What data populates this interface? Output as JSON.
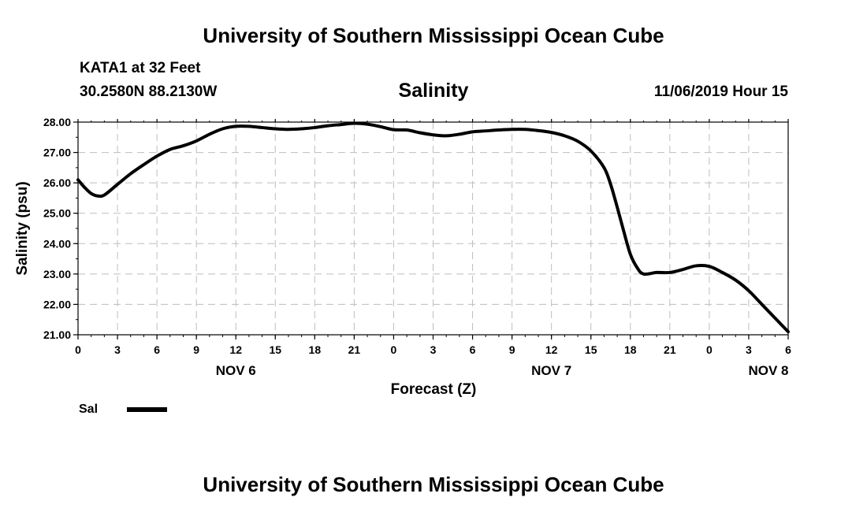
{
  "header": {
    "org_title": "University of Southern Mississippi Ocean Cube",
    "station": "KATA1 at 32 Feet",
    "coordinates": "30.2580N 88.2130W",
    "chart_title": "Salinity",
    "issued": "11/06/2019 Hour 15"
  },
  "footer": {
    "org_title": "University of Southern Mississippi Ocean Cube"
  },
  "chart_data": {
    "type": "line",
    "title": "Salinity",
    "xlabel": "Forecast (Z)",
    "ylabel": "Salinity (psu)",
    "ylim": [
      21.0,
      28.0
    ],
    "xlim": [
      0,
      54
    ],
    "x_unit": "forecast hours from 00Z NOV 6",
    "grid": true,
    "y_ticks": [
      "21.00",
      "22.00",
      "23.00",
      "24.00",
      "25.00",
      "26.00",
      "27.00",
      "28.00"
    ],
    "x_ticks": [
      "0",
      "3",
      "6",
      "9",
      "12",
      "15",
      "18",
      "21",
      "0",
      "3",
      "6",
      "9",
      "12",
      "15",
      "18",
      "21",
      "0",
      "3",
      "6"
    ],
    "day_labels": [
      {
        "label": "NOV 6",
        "x": 12
      },
      {
        "label": "NOV 7",
        "x": 36
      },
      {
        "label": "NOV 8",
        "x": 52.5
      }
    ],
    "legend": {
      "placement": "bottom-left",
      "entries": [
        {
          "name": "Sal"
        }
      ]
    },
    "series": [
      {
        "name": "Sal",
        "color": "#000000",
        "x": [
          0,
          0.5,
          1,
          1.5,
          2,
          3,
          4,
          5,
          6,
          7,
          8,
          9,
          10,
          11,
          12,
          13,
          14,
          15,
          16,
          17,
          18,
          19,
          20,
          21,
          22,
          23,
          24,
          25,
          26,
          27,
          28,
          29,
          30,
          31,
          32,
          33,
          34,
          35,
          36,
          37,
          38,
          39,
          40,
          40.5,
          41,
          41.5,
          42,
          42.5,
          43,
          44,
          45,
          46,
          47,
          48,
          49,
          50,
          51,
          52,
          53,
          54
        ],
        "values": [
          26.1,
          25.85,
          25.65,
          25.57,
          25.6,
          25.95,
          26.3,
          26.6,
          26.88,
          27.1,
          27.22,
          27.38,
          27.6,
          27.78,
          27.86,
          27.86,
          27.82,
          27.78,
          27.76,
          27.78,
          27.82,
          27.88,
          27.92,
          27.96,
          27.93,
          27.85,
          27.75,
          27.74,
          27.65,
          27.58,
          27.55,
          27.6,
          27.68,
          27.71,
          27.74,
          27.76,
          27.76,
          27.72,
          27.66,
          27.55,
          27.37,
          27.05,
          26.5,
          25.95,
          25.2,
          24.4,
          23.65,
          23.22,
          23.0,
          23.05,
          23.05,
          23.15,
          23.27,
          23.25,
          23.05,
          22.8,
          22.45,
          22.0,
          21.55,
          21.1
        ]
      }
    ]
  }
}
